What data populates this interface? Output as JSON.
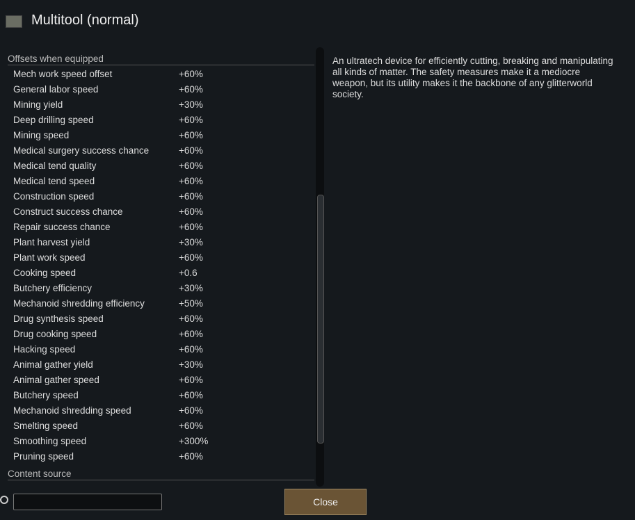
{
  "header": {
    "title": "Multitool (normal)"
  },
  "section": {
    "title": "Offsets when equipped",
    "rows": [
      [
        "Mech work speed offset",
        "+60%"
      ],
      [
        "General labor speed",
        "+60%"
      ],
      [
        "Mining yield",
        "+30%"
      ],
      [
        "Deep drilling speed",
        "+60%"
      ],
      [
        "Mining speed",
        "+60%"
      ],
      [
        "Medical surgery success chance",
        "+60%"
      ],
      [
        "Medical tend quality",
        "+60%"
      ],
      [
        "Medical tend speed",
        "+60%"
      ],
      [
        "Construction speed",
        "+60%"
      ],
      [
        "Construct success chance",
        "+60%"
      ],
      [
        "Repair success chance",
        "+60%"
      ],
      [
        "Plant harvest yield",
        "+30%"
      ],
      [
        "Plant work speed",
        "+60%"
      ],
      [
        "Cooking speed",
        "+0.6"
      ],
      [
        "Butchery efficiency",
        "+30%"
      ],
      [
        "Mechanoid shredding efficiency",
        "+50%"
      ],
      [
        "Drug synthesis speed",
        "+60%"
      ],
      [
        "Drug cooking speed",
        "+60%"
      ],
      [
        "Hacking speed",
        "+60%"
      ],
      [
        "Animal gather yield",
        "+30%"
      ],
      [
        "Animal gather speed",
        "+60%"
      ],
      [
        "Butchery speed",
        "+60%"
      ],
      [
        "Mechanoid shredding speed",
        "+60%"
      ],
      [
        "Smelting speed",
        "+60%"
      ],
      [
        "Smoothing speed",
        "+300%"
      ],
      [
        "Pruning speed",
        "+60%"
      ]
    ]
  },
  "section2": {
    "title": "Content source"
  },
  "description": "An ultratech device for efficiently cutting, breaking and manipulating all kinds of matter. The safety measures make it a mediocre weapon, but its utility makes it the backbone of any glitterworld society.",
  "button": "Close"
}
